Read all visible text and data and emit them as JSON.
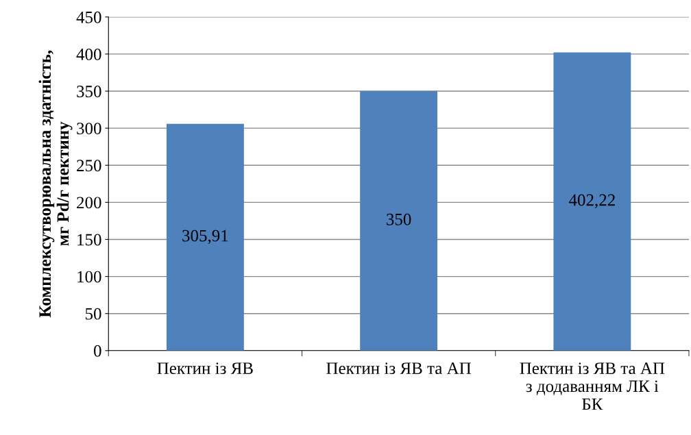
{
  "chart_data": {
    "type": "bar",
    "ylabel": "Комплексутворювальна здатність,\nмг Pd/г пектину",
    "categories": [
      "Пектин із ЯВ",
      "Пектин із ЯВ та АП",
      "Пектин із ЯВ та АП з додаванням ЛК і БК"
    ],
    "values": [
      305.91,
      350,
      402.22
    ],
    "color": "#4f81bd",
    "value_labels": [
      "305,91",
      "350",
      "402,22"
    ],
    "ylim": [
      0,
      450
    ],
    "yticks": [
      0,
      50,
      100,
      150,
      200,
      250,
      300,
      350,
      400,
      450
    ],
    "grid": "y",
    "legend": false
  }
}
